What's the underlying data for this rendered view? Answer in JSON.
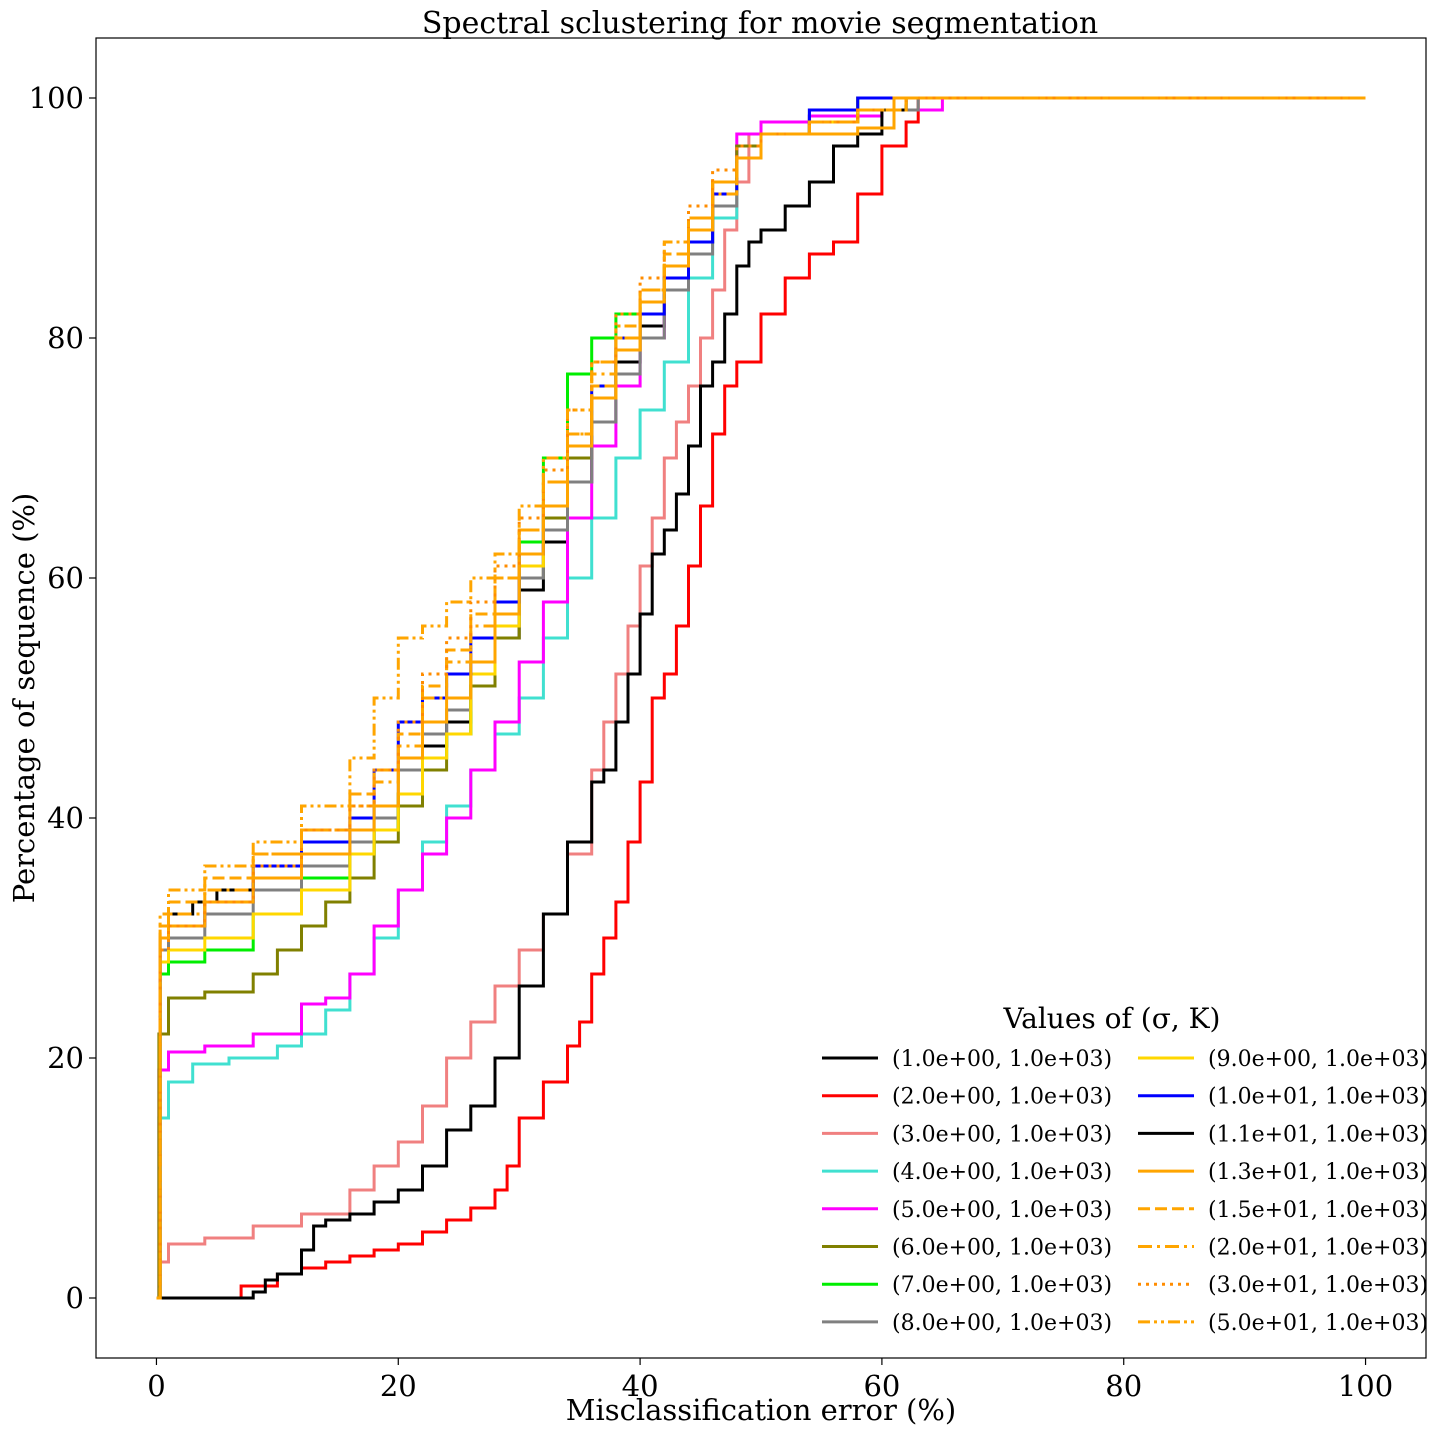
{
  "chart_data": {
    "type": "line",
    "title": "Spectral sclustering for movie segmentation",
    "xlabel": "Misclassification error (%)",
    "ylabel": "Percentage of sequence (%)",
    "xlim": [
      -5,
      105
    ],
    "ylim": [
      -5,
      105
    ],
    "xticks": [
      0,
      20,
      40,
      60,
      80,
      100
    ],
    "yticks": [
      0,
      20,
      40,
      60,
      80,
      100
    ],
    "grid": false,
    "legend": {
      "title": "Values of (σ, K)",
      "placement": "lower-right",
      "columns": 2
    },
    "series": [
      {
        "name": "(1.0e+00, 1.0e+03)",
        "color": "#000000",
        "style": "solid",
        "x": [
          0,
          0.3,
          1,
          3,
          5,
          8,
          12,
          16,
          18,
          20,
          22,
          24,
          26,
          28,
          30,
          32,
          34,
          36,
          38,
          40,
          42,
          44,
          46,
          48,
          50,
          54,
          58,
          62,
          100
        ],
        "y": [
          0,
          29,
          32,
          33,
          34,
          35,
          36,
          37,
          39,
          42,
          46,
          48,
          51,
          55,
          59,
          63,
          68,
          73,
          78,
          81,
          85,
          88,
          92,
          96,
          98,
          98.5,
          99,
          100,
          100
        ]
      },
      {
        "name": "(2.0e+00, 1.0e+03)",
        "color": "#ff0000",
        "style": "solid",
        "x": [
          0,
          6.5,
          7,
          10,
          12,
          14,
          16,
          18,
          20,
          22,
          24,
          26,
          28,
          29,
          30,
          32,
          34,
          35,
          36,
          37,
          38,
          39,
          40,
          41,
          42,
          43,
          44,
          45,
          46,
          47,
          48,
          50,
          52,
          54,
          56,
          58,
          60,
          62,
          63,
          100
        ],
        "y": [
          0,
          0,
          1,
          2,
          2.5,
          3,
          3.5,
          4,
          4.5,
          5.5,
          6.5,
          7.5,
          9,
          11,
          15,
          18,
          21,
          23,
          27,
          30,
          33,
          38,
          43,
          50,
          52,
          56,
          61,
          66,
          72,
          76,
          78,
          82,
          85,
          87,
          88,
          92,
          96,
          98,
          100,
          100
        ]
      },
      {
        "name": "(3.0e+00, 1.0e+03)",
        "color": "#f08080",
        "style": "solid",
        "x": [
          0,
          0.3,
          1,
          4,
          8,
          12,
          16,
          18,
          20,
          22,
          24,
          26,
          28,
          30,
          32,
          34,
          36,
          37,
          38,
          39,
          40,
          41,
          42,
          43,
          44,
          45,
          46,
          47,
          48,
          49,
          50,
          54,
          58,
          100
        ],
        "y": [
          0,
          3,
          4.5,
          5,
          6,
          7,
          9,
          11,
          13,
          16,
          20,
          23,
          26,
          29,
          32,
          37,
          44,
          48,
          52,
          56,
          61,
          65,
          70,
          73,
          76,
          80,
          84,
          89,
          93,
          97,
          98,
          99,
          100,
          100
        ]
      },
      {
        "name": "(4.0e+00, 1.0e+03)",
        "color": "#40e0d0",
        "style": "solid",
        "x": [
          0,
          0.2,
          1,
          3,
          6,
          10,
          12,
          14,
          16,
          18,
          20,
          22,
          24,
          26,
          28,
          30,
          32,
          34,
          36,
          38,
          40,
          42,
          44,
          46,
          48,
          50,
          54,
          58,
          100
        ],
        "y": [
          0,
          15,
          18,
          19.5,
          20,
          21,
          22,
          24,
          27,
          30,
          34,
          38,
          41,
          44,
          47,
          50,
          55,
          60,
          65,
          70,
          74,
          78,
          85,
          90,
          95,
          97,
          99,
          100,
          100
        ]
      },
      {
        "name": "(5.0e+00, 1.0e+03)",
        "color": "#ff00ff",
        "style": "solid",
        "x": [
          0,
          0.2,
          1,
          4,
          8,
          12,
          14,
          16,
          18,
          20,
          22,
          24,
          26,
          28,
          30,
          32,
          34,
          36,
          38,
          40,
          42,
          44,
          46,
          48,
          50,
          54,
          60,
          65,
          100
        ],
        "y": [
          0,
          19,
          20.5,
          21,
          22,
          24.5,
          25,
          27,
          31,
          34,
          37,
          40,
          44,
          48,
          53,
          58,
          65,
          71,
          76,
          80,
          84,
          88,
          93,
          97,
          98,
          98.5,
          99,
          100,
          100
        ]
      },
      {
        "name": "(6.0e+00, 1.0e+03)",
        "color": "#808000",
        "style": "solid",
        "x": [
          0,
          0.2,
          1,
          4,
          8,
          10,
          12,
          14,
          16,
          18,
          20,
          22,
          24,
          26,
          28,
          30,
          32,
          34,
          36,
          38,
          40,
          42,
          44,
          46,
          48,
          50,
          54,
          58,
          100
        ],
        "y": [
          0,
          22,
          25,
          25.5,
          27,
          29,
          31,
          33,
          35,
          38,
          41,
          44,
          47,
          51,
          55,
          60,
          65,
          70,
          75,
          79,
          82,
          86,
          89,
          93,
          96,
          97,
          98,
          100,
          100
        ]
      },
      {
        "name": "(7.0e+00, 1.0e+03)",
        "color": "#00ee00",
        "style": "solid",
        "x": [
          0,
          0.3,
          1,
          4,
          8,
          12,
          16,
          18,
          20,
          22,
          24,
          26,
          28,
          30,
          32,
          34,
          36,
          38,
          40,
          42,
          44,
          46,
          48,
          50,
          54,
          58,
          100
        ],
        "y": [
          0,
          27,
          28,
          29,
          32,
          35,
          37,
          39,
          42,
          45,
          47,
          52,
          57,
          63,
          70,
          77,
          80,
          82,
          83,
          86,
          88,
          92,
          95,
          97,
          98,
          100,
          100
        ]
      },
      {
        "name": "(8.0e+00, 1.0e+03)",
        "color": "#808080",
        "style": "solid",
        "x": [
          0,
          0.3,
          1,
          4,
          8,
          12,
          16,
          18,
          20,
          22,
          24,
          26,
          28,
          30,
          32,
          34,
          36,
          38,
          40,
          42,
          44,
          46,
          48,
          50,
          54,
          58,
          63,
          100
        ],
        "y": [
          0,
          29,
          30,
          32,
          34,
          36,
          38,
          40,
          44,
          47,
          49,
          52,
          56,
          60,
          64,
          68,
          73,
          77,
          80,
          84,
          87,
          91,
          95,
          97,
          98,
          99,
          100,
          100
        ]
      },
      {
        "name": "(9.0e+00, 1.0e+03)",
        "color": "#ffd700",
        "style": "solid",
        "x": [
          0,
          0.3,
          1,
          4,
          8,
          12,
          16,
          18,
          20,
          22,
          24,
          26,
          28,
          30,
          32,
          34,
          36,
          38,
          40,
          42,
          44,
          46,
          48,
          50,
          54,
          58,
          100
        ],
        "y": [
          0,
          28,
          29,
          30,
          32,
          34,
          37,
          39,
          42,
          45,
          47,
          52,
          56,
          61,
          66,
          71,
          75,
          79,
          82,
          86,
          89,
          92,
          95,
          97,
          98,
          100,
          100
        ]
      },
      {
        "name": "(1.0e+01, 1.0e+03)",
        "color": "#0000ff",
        "style": "solid",
        "x": [
          0,
          0.3,
          1,
          4,
          8,
          12,
          16,
          18,
          20,
          22,
          24,
          26,
          28,
          30,
          32,
          34,
          36,
          38,
          40,
          42,
          44,
          46,
          48,
          50,
          54,
          58,
          100
        ],
        "y": [
          0,
          30,
          31,
          33,
          36,
          38,
          40,
          44,
          48,
          50,
          52,
          55,
          58,
          62,
          66,
          71,
          76,
          80,
          82,
          85,
          88,
          92,
          95,
          97,
          99,
          100,
          100
        ]
      },
      {
        "name": "(1.1e+01, 1.0e+03)",
        "color": "#000000",
        "style": "solid",
        "x": [
          0,
          7,
          8,
          9,
          10,
          12,
          13,
          14,
          16,
          18,
          20,
          22,
          24,
          26,
          28,
          30,
          32,
          34,
          36,
          37,
          38,
          39,
          40,
          41,
          42,
          43,
          44,
          45,
          46,
          47,
          48,
          49,
          50,
          52,
          54,
          56,
          58,
          60,
          62,
          100
        ],
        "y": [
          0,
          0,
          0.5,
          1.5,
          2,
          4,
          6,
          6.5,
          7,
          8,
          9,
          11,
          14,
          16,
          20,
          26,
          32,
          38,
          43,
          44,
          48,
          52,
          57,
          62,
          64,
          67,
          71,
          76,
          78,
          82,
          86,
          88,
          89,
          91,
          93,
          96,
          97,
          99,
          100,
          100
        ]
      },
      {
        "name": "(1.3e+01, 1.0e+03)",
        "color": "#ffa500",
        "style": "solid",
        "x": [
          0,
          0.3,
          1,
          4,
          8,
          12,
          16,
          18,
          20,
          22,
          24,
          26,
          28,
          30,
          32,
          34,
          36,
          38,
          40,
          42,
          44,
          46,
          48,
          50,
          54,
          58,
          61,
          100
        ],
        "y": [
          0,
          30,
          31,
          33,
          35,
          37,
          39,
          41,
          45,
          48,
          50,
          53,
          57,
          62,
          66,
          71,
          75,
          79,
          83,
          86,
          89,
          93,
          95,
          97,
          97,
          97.5,
          100,
          100
        ]
      },
      {
        "name": "(1.5e+01, 1.0e+03)",
        "color": "#ffa500",
        "style": "dashed",
        "x": [
          0,
          0.3,
          1,
          4,
          8,
          12,
          16,
          18,
          20,
          22,
          24,
          26,
          28,
          30,
          32,
          34,
          36,
          38,
          40,
          42,
          44,
          46,
          48,
          50,
          54,
          58,
          62,
          100
        ],
        "y": [
          0,
          31,
          33,
          35,
          37,
          39,
          42,
          44,
          47,
          51,
          54,
          57,
          60,
          64,
          68,
          72,
          76,
          80,
          84,
          87,
          90,
          93,
          95,
          97,
          98,
          99,
          100,
          100
        ]
      },
      {
        "name": "(2.0e+01, 1.0e+03)",
        "color": "#ffa500",
        "style": "dashdot",
        "x": [
          0,
          0.3,
          1,
          4,
          8,
          12,
          16,
          18,
          20,
          22,
          24,
          26,
          28,
          30,
          32,
          34,
          36,
          38,
          40,
          42,
          44,
          46,
          48,
          50,
          54,
          58,
          62,
          100
        ],
        "y": [
          0,
          30,
          32,
          34,
          37,
          39,
          41,
          43,
          46,
          50,
          53,
          56,
          60,
          64,
          68,
          72,
          77,
          80,
          83,
          86,
          89,
          92,
          95,
          97,
          98,
          99,
          100,
          100
        ]
      },
      {
        "name": "(3.0e+01, 1.0e+03)",
        "color": "#ff8c00",
        "style": "dotted",
        "x": [
          0,
          0.3,
          1,
          4,
          8,
          12,
          16,
          18,
          20,
          22,
          24,
          26,
          28,
          30,
          32,
          34,
          36,
          38,
          40,
          42,
          44,
          46,
          48,
          50,
          54,
          58,
          62,
          100
        ],
        "y": [
          0,
          29,
          31,
          33,
          36,
          39,
          41,
          44,
          48,
          52,
          55,
          58,
          61,
          65,
          69,
          74,
          78,
          82,
          85,
          88,
          91,
          94,
          96,
          97,
          98,
          99,
          100,
          100
        ]
      },
      {
        "name": "(5.0e+01, 1.0e+03)",
        "color": "#ffa500",
        "style": "dashdotdot",
        "x": [
          0,
          0.3,
          1,
          4,
          8,
          12,
          16,
          18,
          20,
          22,
          24,
          26,
          28,
          30,
          32,
          34,
          36,
          38,
          40,
          42,
          44,
          46,
          48,
          50,
          54,
          58,
          62,
          100
        ],
        "y": [
          0,
          32,
          34,
          36,
          38,
          41,
          45,
          50,
          55,
          56,
          58,
          60,
          62,
          66,
          70,
          74,
          78,
          81,
          84,
          88,
          90,
          93,
          95,
          97,
          98,
          99,
          100,
          100
        ]
      }
    ]
  }
}
